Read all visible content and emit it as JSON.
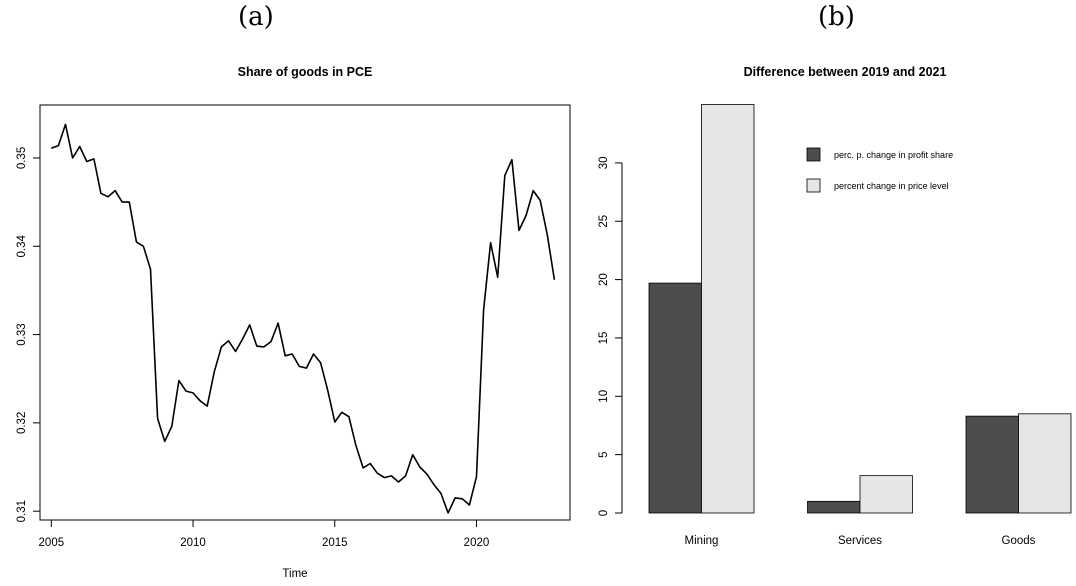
{
  "panels": {
    "a_label": "(a)",
    "b_label": "(b)"
  },
  "chart_data": [
    {
      "type": "line",
      "title": "Share of goods in PCE",
      "xlabel": "Time",
      "ylabel": "",
      "xlim": [
        2004.6,
        2023.3
      ],
      "ylim": [
        0.309,
        0.356
      ],
      "x_ticks": [
        2005,
        2010,
        2015,
        2020
      ],
      "y_ticks": [
        0.31,
        0.32,
        0.33,
        0.34,
        0.35
      ],
      "series": [
        {
          "x": [
            2005.0,
            2005.25,
            2005.5,
            2005.75,
            2006.0,
            2006.25,
            2006.5,
            2006.75,
            2007.0,
            2007.25,
            2007.5,
            2007.75,
            2008.0,
            2008.25,
            2008.5,
            2008.75,
            2009.0,
            2009.25,
            2009.5,
            2009.75,
            2010.0,
            2010.25,
            2010.5,
            2010.75,
            2011.0,
            2011.25,
            2011.5,
            2011.75,
            2012.0,
            2012.25,
            2012.5,
            2012.75,
            2013.0,
            2013.25,
            2013.5,
            2013.75,
            2014.0,
            2014.25,
            2014.5,
            2014.75,
            2015.0,
            2015.25,
            2015.5,
            2015.75,
            2016.0,
            2016.25,
            2016.5,
            2016.75,
            2017.0,
            2017.25,
            2017.5,
            2017.75,
            2018.0,
            2018.25,
            2018.5,
            2018.75,
            2019.0,
            2019.25,
            2019.5,
            2019.75,
            2020.0,
            2020.25,
            2020.5,
            2020.75,
            2021.0,
            2021.25,
            2021.5,
            2021.75,
            2022.0,
            2022.25,
            2022.5,
            2022.75
          ],
          "y": [
            0.3511,
            0.3514,
            0.3538,
            0.35,
            0.3513,
            0.3496,
            0.3499,
            0.346,
            0.3456,
            0.3463,
            0.345,
            0.345,
            0.3405,
            0.34,
            0.3374,
            0.3205,
            0.3179,
            0.3196,
            0.3248,
            0.3236,
            0.3234,
            0.3225,
            0.3219,
            0.3258,
            0.3286,
            0.3293,
            0.3281,
            0.3295,
            0.3311,
            0.3287,
            0.3286,
            0.3292,
            0.3313,
            0.3276,
            0.3278,
            0.3264,
            0.3262,
            0.3278,
            0.3268,
            0.3237,
            0.3201,
            0.3212,
            0.3207,
            0.3174,
            0.3149,
            0.3154,
            0.3143,
            0.3138,
            0.314,
            0.3133,
            0.314,
            0.3164,
            0.315,
            0.3142,
            0.313,
            0.312,
            0.3098,
            0.3115,
            0.3114,
            0.3107,
            0.3139,
            0.3328,
            0.3404,
            0.3365,
            0.348,
            0.3498,
            0.3418,
            0.3435,
            0.3463,
            0.3452,
            0.3413,
            0.3362
          ]
        }
      ]
    },
    {
      "type": "bar",
      "title": "Difference between 2019 and 2021",
      "xlabel": "",
      "ylabel": "",
      "categories": [
        "Mining",
        "Services",
        "Goods"
      ],
      "ylim": [
        0,
        35
      ],
      "y_ticks": [
        0,
        5,
        10,
        15,
        20,
        25,
        30
      ],
      "series": [
        {
          "name": "perc. p. change in profit share",
          "color": "#4d4d4d",
          "values": [
            19.7,
            1.0,
            8.3
          ]
        },
        {
          "name": "percent change in price level",
          "color": "#e6e6e6",
          "values": [
            35.0,
            3.2,
            8.5
          ]
        }
      ],
      "legend_position": "top-right"
    }
  ]
}
